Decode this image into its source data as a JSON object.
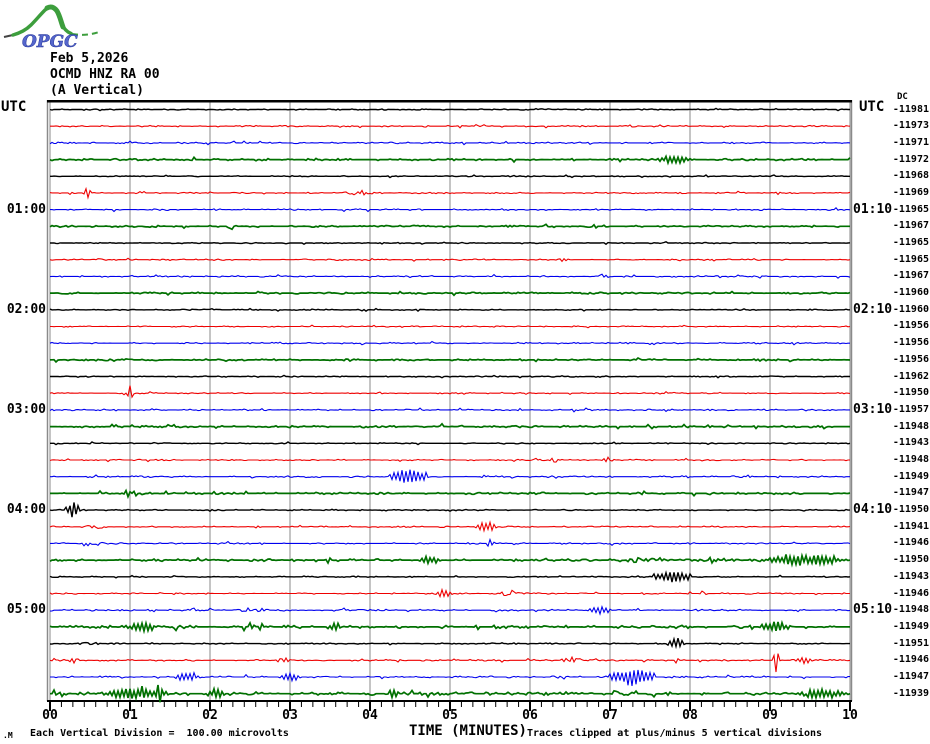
{
  "logo": {
    "text": "OPGC"
  },
  "header": {
    "date": "Feb 5,2026",
    "station": "OCMD HNZ RA 00",
    "component": "(A Vertical)"
  },
  "axis_labels": {
    "utc_left": "UTC",
    "utc_right": "UTC",
    "dc": "DC"
  },
  "footer": {
    "corner_mark": ".M",
    "scale_note": "Each Vertical Division =  100.00 microvolts",
    "time_axis_label": "TIME (MINUTES)",
    "clip_note": "Traces clipped at plus/minus 5 vertical divisions"
  },
  "colors": {
    "black": "#000000",
    "red": "#ee0000",
    "blue": "#0000ee",
    "green": "#007000",
    "grid": "#8a8a8a"
  },
  "chart_data": {
    "type": "line",
    "x_range": [
      0,
      10
    ],
    "x_tick_labels": [
      "00",
      "01",
      "02",
      "03",
      "04",
      "05",
      "06",
      "07",
      "08",
      "09",
      "10"
    ],
    "xlabel": "TIME (MINUTES)",
    "minutes_per_row": 10,
    "row_color_cycle": [
      "black",
      "red",
      "blue",
      "green"
    ],
    "rows": [
      {
        "start": "00:00",
        "color": "black",
        "dc": -11981,
        "noise": 0.55,
        "events": []
      },
      {
        "start": "00:10",
        "color": "red",
        "dc": -11973,
        "noise": 0.7,
        "events": []
      },
      {
        "start": "00:20",
        "color": "blue",
        "dc": -11971,
        "noise": 0.8,
        "events": []
      },
      {
        "start": "00:30",
        "color": "green",
        "dc": -11972,
        "noise": 1.0,
        "events": [
          [
            7.55,
            0.5,
            4
          ]
        ]
      },
      {
        "start": "00:40",
        "color": "black",
        "dc": -11968,
        "noise": 0.55,
        "events": []
      },
      {
        "start": "00:50",
        "color": "red",
        "dc": -11969,
        "noise": 0.7,
        "events": [
          [
            0.42,
            0.08,
            6
          ],
          [
            3.65,
            0.45,
            2.5
          ]
        ]
      },
      {
        "start": "01:00",
        "label_left": "01:00",
        "label_right": "01:10",
        "color": "blue",
        "dc": -11965,
        "noise": 0.8,
        "events": []
      },
      {
        "start": "01:10",
        "color": "green",
        "dc": -11967,
        "noise": 0.9,
        "events": [
          [
            2.2,
            0.1,
            2
          ]
        ]
      },
      {
        "start": "01:20",
        "color": "black",
        "dc": -11965,
        "noise": 0.55,
        "events": []
      },
      {
        "start": "01:30",
        "color": "red",
        "dc": -11965,
        "noise": 0.7,
        "events": [
          [
            6.3,
            0.2,
            2
          ]
        ]
      },
      {
        "start": "01:40",
        "color": "blue",
        "dc": -11967,
        "noise": 0.8,
        "events": [
          [
            6.8,
            0.25,
            3
          ]
        ]
      },
      {
        "start": "01:50",
        "color": "green",
        "dc": -11960,
        "noise": 0.9,
        "events": []
      },
      {
        "start": "02:00",
        "label_left": "02:00",
        "label_right": "02:10",
        "color": "black",
        "dc": -11960,
        "noise": 0.55,
        "events": []
      },
      {
        "start": "02:10",
        "color": "red",
        "dc": -11956,
        "noise": 0.65,
        "events": []
      },
      {
        "start": "02:20",
        "color": "blue",
        "dc": -11956,
        "noise": 0.75,
        "events": []
      },
      {
        "start": "02:30",
        "color": "green",
        "dc": -11956,
        "noise": 0.85,
        "events": []
      },
      {
        "start": "02:40",
        "color": "black",
        "dc": -11962,
        "noise": 0.55,
        "events": []
      },
      {
        "start": "02:50",
        "color": "red",
        "dc": -11950,
        "noise": 0.65,
        "events": [
          [
            0.97,
            0.06,
            8
          ]
        ]
      },
      {
        "start": "03:00",
        "label_left": "03:00",
        "label_right": "03:10",
        "color": "blue",
        "dc": -11957,
        "noise": 0.8,
        "events": []
      },
      {
        "start": "03:10",
        "color": "green",
        "dc": -11948,
        "noise": 0.9,
        "events": [
          [
            4.85,
            0.1,
            2.5
          ]
        ]
      },
      {
        "start": "03:20",
        "color": "black",
        "dc": -11943,
        "noise": 0.55,
        "events": []
      },
      {
        "start": "03:30",
        "color": "red",
        "dc": -11948,
        "noise": 0.7,
        "events": [
          [
            6.2,
            0.2,
            2.5
          ],
          [
            6.9,
            0.15,
            3
          ]
        ]
      },
      {
        "start": "03:40",
        "color": "blue",
        "dc": -11949,
        "noise": 0.85,
        "events": [
          [
            4.25,
            0.45,
            8
          ],
          [
            5.35,
            0.1,
            3
          ]
        ]
      },
      {
        "start": "03:50",
        "color": "green",
        "dc": -11947,
        "noise": 1.0,
        "events": [
          [
            0.85,
            0.35,
            3
          ],
          [
            2.2,
            0.08,
            3
          ]
        ]
      },
      {
        "start": "04:00",
        "label_left": "04:00",
        "label_right": "04:10",
        "color": "black",
        "dc": -11950,
        "noise": 0.6,
        "events": [
          [
            0.2,
            0.15,
            9
          ]
        ]
      },
      {
        "start": "04:10",
        "color": "red",
        "dc": -11941,
        "noise": 0.7,
        "events": [
          [
            0.42,
            0.3,
            3
          ],
          [
            5.3,
            0.3,
            5
          ]
        ]
      },
      {
        "start": "04:20",
        "color": "blue",
        "dc": -11946,
        "noise": 0.8,
        "events": [
          [
            0.35,
            0.35,
            3
          ],
          [
            5.45,
            0.12,
            4
          ]
        ]
      },
      {
        "start": "04:30",
        "color": "green",
        "dc": -11950,
        "noise": 1.2,
        "events": [
          [
            4.6,
            0.3,
            4
          ],
          [
            7.0,
            0.8,
            2.5
          ],
          [
            8.85,
            1.15,
            5
          ]
        ]
      },
      {
        "start": "04:40",
        "color": "black",
        "dc": -11943,
        "noise": 0.6,
        "events": [
          [
            7.55,
            0.45,
            6
          ]
        ]
      },
      {
        "start": "04:50",
        "color": "red",
        "dc": -11946,
        "noise": 0.7,
        "events": [
          [
            4.8,
            0.25,
            4
          ],
          [
            5.6,
            0.3,
            3
          ],
          [
            8.1,
            0.15,
            3
          ]
        ]
      },
      {
        "start": "05:00",
        "label_left": "05:00",
        "label_right": "05:10",
        "color": "blue",
        "dc": -11948,
        "noise": 0.9,
        "events": [
          [
            2.3,
            0.45,
            2.5
          ],
          [
            5.55,
            0.05,
            4
          ],
          [
            6.7,
            0.35,
            4
          ]
        ]
      },
      {
        "start": "05:10",
        "color": "green",
        "dc": -11949,
        "noise": 1.5,
        "events": [
          [
            0.9,
            0.5,
            4
          ],
          [
            2.4,
            0.4,
            3
          ],
          [
            3.5,
            0.15,
            4
          ],
          [
            5.7,
            0.1,
            3
          ],
          [
            8.85,
            0.45,
            5
          ]
        ]
      },
      {
        "start": "05:20",
        "color": "black",
        "dc": -11951,
        "noise": 0.6,
        "events": [
          [
            0.35,
            0.3,
            2
          ],
          [
            7.7,
            0.25,
            5
          ]
        ]
      },
      {
        "start": "05:30",
        "color": "red",
        "dc": -11946,
        "noise": 0.8,
        "events": [
          [
            0.2,
            0.2,
            3
          ],
          [
            2.8,
            0.25,
            3
          ],
          [
            6.35,
            0.35,
            3
          ],
          [
            7.8,
            0.06,
            4
          ],
          [
            9.05,
            0.06,
            13
          ],
          [
            9.3,
            0.25,
            4
          ]
        ]
      },
      {
        "start": "05:40",
        "color": "blue",
        "dc": -11947,
        "noise": 0.95,
        "events": [
          [
            1.55,
            0.3,
            5
          ],
          [
            2.85,
            0.3,
            4
          ],
          [
            6.3,
            0.15,
            3
          ],
          [
            7.0,
            0.55,
            9
          ]
        ]
      },
      {
        "start": "05:50",
        "color": "green",
        "dc": -11939,
        "noise": 1.5,
        "events": [
          [
            0.55,
            1.0,
            5
          ],
          [
            1.33,
            0.07,
            13
          ],
          [
            1.95,
            0.25,
            5
          ],
          [
            4.25,
            0.12,
            4
          ],
          [
            7.0,
            0.15,
            3
          ],
          [
            9.3,
            0.7,
            5
          ]
        ]
      }
    ]
  }
}
